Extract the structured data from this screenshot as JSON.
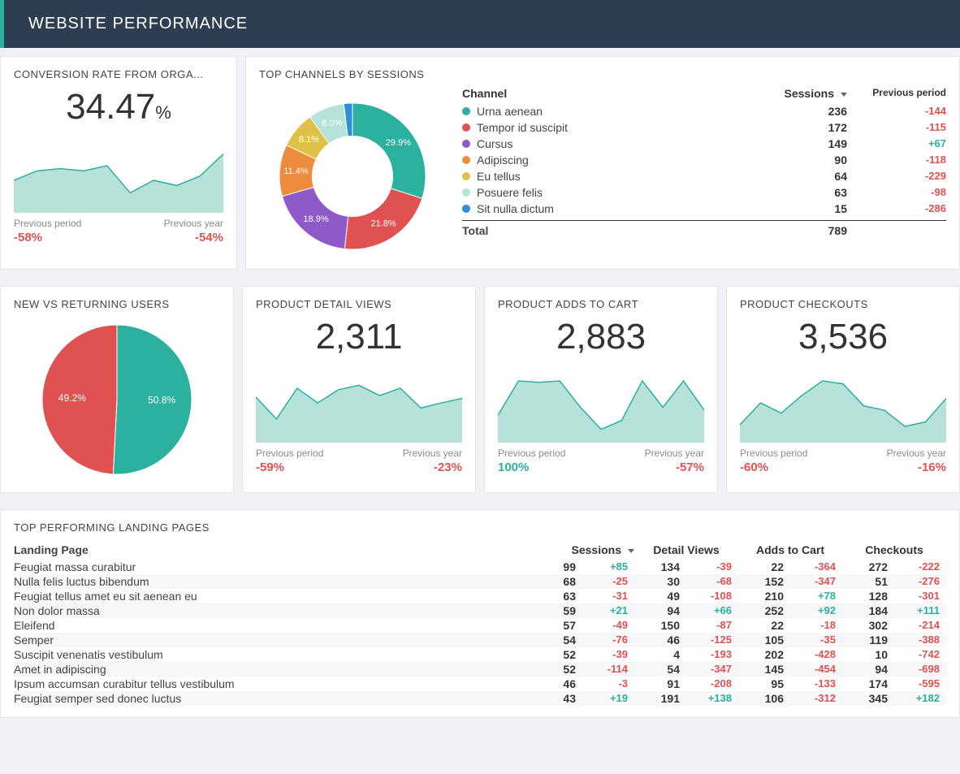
{
  "colors": {
    "teal": "#2bb19e",
    "red": "#e05252",
    "yellow": "#e0c147",
    "purple": "#8f59c7",
    "orange": "#ef8b3d",
    "blue": "#2e8fd6",
    "teal_fill": "#b6e2da",
    "teal_stroke": "#2bb19e",
    "bg_card": "#ffffff",
    "header_bg": "#2d3e50",
    "grid_line": "#e5e5e5"
  },
  "header": {
    "title": "WEBSITE PERFORMANCE"
  },
  "conversion": {
    "title": "CONVERSION RATE FROM ORGA...",
    "value": "34.47",
    "sparkline": {
      "points": [
        42,
        55,
        58,
        55,
        62,
        25,
        42,
        35,
        48,
        78
      ],
      "fill": "#b6e2da",
      "stroke": "#2bb19e"
    },
    "prev_period": {
      "label": "Previous period",
      "value": "-58%",
      "positive": false
    },
    "prev_year": {
      "label": "Previous year",
      "value": "-54%",
      "positive": false
    }
  },
  "channels": {
    "title": "TOP CHANNELS BY SESSIONS",
    "col_channel": "Channel",
    "col_sessions": "Sessions",
    "col_prev": "Previous period",
    "donut_inner_ratio": 0.55,
    "rows": [
      {
        "name": "Urna aenean",
        "sessions": 236,
        "change": -144,
        "color": "#2bb19e",
        "pct": "29.9%"
      },
      {
        "name": "Tempor id suscipit",
        "sessions": 172,
        "change": -115,
        "color": "#e05252",
        "pct": "21.8%"
      },
      {
        "name": "Cursus",
        "sessions": 149,
        "change": 67,
        "color": "#8f59c7",
        "pct": "18.9%"
      },
      {
        "name": "Adipiscing",
        "sessions": 90,
        "change": -118,
        "color": "#ef8b3d",
        "pct": "11.4%"
      },
      {
        "name": "Eu tellus",
        "sessions": 64,
        "change": -229,
        "color": "#e0c147",
        "pct": "8.1%"
      },
      {
        "name": "Posuere felis",
        "sessions": 63,
        "change": -98,
        "color": "#b6e2da",
        "pct": "8.0%"
      },
      {
        "name": "Sit nulla dictum",
        "sessions": 15,
        "change": -286,
        "color": "#2e8fd6",
        "pct": "1.9%"
      }
    ],
    "total_label": "Total",
    "total": 789
  },
  "new_vs_returning": {
    "title": "NEW VS RETURNING USERS",
    "slices": [
      {
        "label": "50.8%",
        "value": 50.8,
        "color": "#2bb19e"
      },
      {
        "label": "49.2%",
        "value": 49.2,
        "color": "#e05252"
      }
    ]
  },
  "metrics": [
    {
      "title": "PRODUCT DETAIL VIEWS",
      "value": "2,311",
      "sparkline": {
        "points": [
          60,
          30,
          72,
          52,
          70,
          76,
          62,
          72,
          45,
          52,
          58
        ],
        "fill": "#b6e2da",
        "stroke": "#2bb19e"
      },
      "prev_period": {
        "label": "Previous period",
        "value": "-59%",
        "positive": false
      },
      "prev_year": {
        "label": "Previous year",
        "value": "-23%",
        "positive": false
      }
    },
    {
      "title": "PRODUCT ADDS TO CART",
      "value": "2,883",
      "sparkline": {
        "points": [
          35,
          82,
          80,
          82,
          46,
          16,
          28,
          82,
          46,
          82,
          42
        ],
        "fill": "#b6e2da",
        "stroke": "#2bb19e"
      },
      "prev_period": {
        "label": "Previous period",
        "value": "100%",
        "positive": true
      },
      "prev_year": {
        "label": "Previous year",
        "value": "-57%",
        "positive": false
      }
    },
    {
      "title": "PRODUCT CHECKOUTS",
      "value": "3,536",
      "sparkline": {
        "points": [
          22,
          52,
          38,
          62,
          82,
          78,
          48,
          42,
          20,
          26,
          58
        ],
        "fill": "#b6e2da",
        "stroke": "#2bb19e"
      },
      "prev_period": {
        "label": "Previous period",
        "value": "-60%",
        "positive": false
      },
      "prev_year": {
        "label": "Previous year",
        "value": "-16%",
        "positive": false
      }
    }
  ],
  "landing": {
    "title": "TOP PERFORMING LANDING PAGES",
    "col_page": "Landing Page",
    "col_sessions": "Sessions",
    "col_detail": "Detail Views",
    "col_adds": "Adds to Cart",
    "col_checkouts": "Checkouts",
    "rows": [
      {
        "name": "Feugiat massa curabitur",
        "sessions": 99,
        "sessions_chg": 85,
        "detail": 134,
        "detail_chg": -39,
        "adds": 22,
        "adds_chg": -364,
        "checkouts": 272,
        "checkouts_chg": -222
      },
      {
        "name": "Nulla felis luctus bibendum",
        "sessions": 68,
        "sessions_chg": -25,
        "detail": 30,
        "detail_chg": -68,
        "adds": 152,
        "adds_chg": -347,
        "checkouts": 51,
        "checkouts_chg": -276
      },
      {
        "name": "Feugiat tellus amet eu sit aenean eu",
        "sessions": 63,
        "sessions_chg": -31,
        "detail": 49,
        "detail_chg": -108,
        "adds": 210,
        "adds_chg": 78,
        "checkouts": 128,
        "checkouts_chg": -301
      },
      {
        "name": "Non dolor massa",
        "sessions": 59,
        "sessions_chg": 21,
        "detail": 94,
        "detail_chg": 66,
        "adds": 252,
        "adds_chg": 92,
        "checkouts": 184,
        "checkouts_chg": 111
      },
      {
        "name": "Eleifend",
        "sessions": 57,
        "sessions_chg": -49,
        "detail": 150,
        "detail_chg": -87,
        "adds": 22,
        "adds_chg": -18,
        "checkouts": 302,
        "checkouts_chg": -214
      },
      {
        "name": "Semper",
        "sessions": 54,
        "sessions_chg": -76,
        "detail": 46,
        "detail_chg": -125,
        "adds": 105,
        "adds_chg": -35,
        "checkouts": 119,
        "checkouts_chg": -388
      },
      {
        "name": "Suscipit venenatis vestibulum",
        "sessions": 52,
        "sessions_chg": -39,
        "detail": 4,
        "detail_chg": -193,
        "adds": 202,
        "adds_chg": -428,
        "checkouts": 10,
        "checkouts_chg": -742
      },
      {
        "name": "Amet in adipiscing",
        "sessions": 52,
        "sessions_chg": -114,
        "detail": 54,
        "detail_chg": -347,
        "adds": 145,
        "adds_chg": -454,
        "checkouts": 94,
        "checkouts_chg": -698
      },
      {
        "name": "Ipsum accumsan curabitur tellus vestibulum",
        "sessions": 46,
        "sessions_chg": -3,
        "detail": 91,
        "detail_chg": -208,
        "adds": 95,
        "adds_chg": -133,
        "checkouts": 174,
        "checkouts_chg": -595
      },
      {
        "name": "Feugiat semper sed donec luctus",
        "sessions": 43,
        "sessions_chg": 19,
        "detail": 191,
        "detail_chg": 138,
        "adds": 106,
        "adds_chg": -312,
        "checkouts": 345,
        "checkouts_chg": 182
      }
    ]
  }
}
